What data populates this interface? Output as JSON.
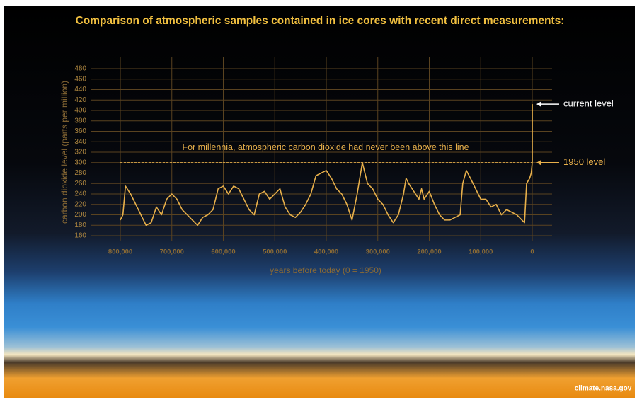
{
  "chart_data": {
    "type": "line",
    "title": "Comparison of atmospheric samples contained in ice cores with recent direct measurements:",
    "x_label": "years before today (0 = 1950)",
    "y_label": "carbon dioxide level (parts per million)",
    "x": [
      800000,
      795000,
      790000,
      780000,
      770000,
      760000,
      750000,
      740000,
      730000,
      720000,
      710000,
      700000,
      690000,
      680000,
      670000,
      660000,
      650000,
      640000,
      630000,
      620000,
      610000,
      600000,
      590000,
      580000,
      570000,
      560000,
      550000,
      540000,
      530000,
      520000,
      510000,
      500000,
      490000,
      480000,
      470000,
      460000,
      450000,
      440000,
      430000,
      420000,
      410000,
      400000,
      390000,
      380000,
      370000,
      360000,
      350000,
      340000,
      335000,
      330000,
      320000,
      310000,
      300000,
      290000,
      280000,
      270000,
      260000,
      250000,
      245000,
      240000,
      230000,
      220000,
      215000,
      210000,
      200000,
      190000,
      180000,
      170000,
      160000,
      150000,
      140000,
      135000,
      128000,
      120000,
      110000,
      100000,
      90000,
      80000,
      70000,
      60000,
      50000,
      40000,
      30000,
      20000,
      15000,
      11000,
      8000,
      5000,
      2000,
      0,
      -70
    ],
    "series": [
      {
        "name": "carbon dioxide level",
        "color": "#e8b04b",
        "values": [
          190,
          200,
          255,
          240,
          220,
          200,
          180,
          185,
          215,
          200,
          230,
          240,
          230,
          210,
          200,
          190,
          180,
          195,
          200,
          210,
          250,
          255,
          240,
          255,
          250,
          230,
          210,
          200,
          240,
          245,
          230,
          240,
          250,
          215,
          200,
          195,
          205,
          220,
          240,
          275,
          280,
          285,
          270,
          250,
          240,
          220,
          190,
          240,
          270,
          300,
          260,
          250,
          230,
          220,
          200,
          185,
          200,
          240,
          270,
          260,
          245,
          230,
          250,
          230,
          245,
          220,
          200,
          190,
          190,
          195,
          200,
          260,
          285,
          270,
          250,
          230,
          230,
          215,
          220,
          200,
          210,
          205,
          200,
          190,
          185,
          260,
          265,
          270,
          280,
          300,
          412
        ]
      }
    ],
    "xlim": [
      800000,
      0
    ],
    "ylim": [
      160,
      480
    ],
    "xticks": [
      {
        "value": 800000,
        "label": "800,000"
      },
      {
        "value": 700000,
        "label": "700,000"
      },
      {
        "value": 600000,
        "label": "600,000"
      },
      {
        "value": 500000,
        "label": "500,000"
      },
      {
        "value": 400000,
        "label": "400,000"
      },
      {
        "value": 300000,
        "label": "300,000"
      },
      {
        "value": 200000,
        "label": "200,000"
      },
      {
        "value": 100000,
        "label": "100,000"
      },
      0
    ],
    "yticks": [
      160,
      180,
      200,
      220,
      240,
      260,
      280,
      300,
      320,
      340,
      360,
      380,
      400,
      420,
      440,
      460,
      480
    ],
    "grid": true,
    "reference_line": {
      "value": 300,
      "label": "For millennia, atmospheric carbon dioxide had never been above this line"
    },
    "annotations": [
      {
        "text": "current level",
        "value": 412
      },
      {
        "text": "1950 level",
        "value": 300
      }
    ],
    "source": "climate.nasa.gov"
  }
}
